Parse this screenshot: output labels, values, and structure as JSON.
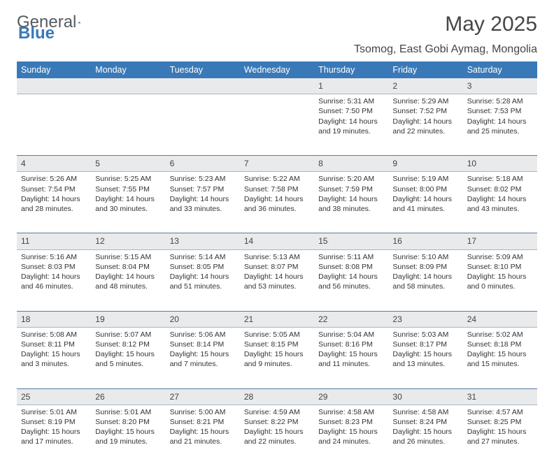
{
  "brand": {
    "first": "General",
    "second": "Blue"
  },
  "title": "May 2025",
  "location": "Tsomog, East Gobi Aymag, Mongolia",
  "colors": {
    "header_bg": "#3a79b7",
    "header_text": "#ffffff",
    "daynum_bg": "#e9eaeb",
    "row_divider": "#5a7aa3",
    "brand_accent": "#3a79b7"
  },
  "day_headers": [
    "Sunday",
    "Monday",
    "Tuesday",
    "Wednesday",
    "Thursday",
    "Friday",
    "Saturday"
  ],
  "weeks": [
    {
      "nums": [
        "",
        "",
        "",
        "",
        "1",
        "2",
        "3"
      ],
      "cells": [
        null,
        null,
        null,
        null,
        {
          "sunrise": "5:31 AM",
          "sunset": "7:50 PM",
          "daylight": "14 hours and 19 minutes."
        },
        {
          "sunrise": "5:29 AM",
          "sunset": "7:52 PM",
          "daylight": "14 hours and 22 minutes."
        },
        {
          "sunrise": "5:28 AM",
          "sunset": "7:53 PM",
          "daylight": "14 hours and 25 minutes."
        }
      ]
    },
    {
      "nums": [
        "4",
        "5",
        "6",
        "7",
        "8",
        "9",
        "10"
      ],
      "cells": [
        {
          "sunrise": "5:26 AM",
          "sunset": "7:54 PM",
          "daylight": "14 hours and 28 minutes."
        },
        {
          "sunrise": "5:25 AM",
          "sunset": "7:55 PM",
          "daylight": "14 hours and 30 minutes."
        },
        {
          "sunrise": "5:23 AM",
          "sunset": "7:57 PM",
          "daylight": "14 hours and 33 minutes."
        },
        {
          "sunrise": "5:22 AM",
          "sunset": "7:58 PM",
          "daylight": "14 hours and 36 minutes."
        },
        {
          "sunrise": "5:20 AM",
          "sunset": "7:59 PM",
          "daylight": "14 hours and 38 minutes."
        },
        {
          "sunrise": "5:19 AM",
          "sunset": "8:00 PM",
          "daylight": "14 hours and 41 minutes."
        },
        {
          "sunrise": "5:18 AM",
          "sunset": "8:02 PM",
          "daylight": "14 hours and 43 minutes."
        }
      ]
    },
    {
      "nums": [
        "11",
        "12",
        "13",
        "14",
        "15",
        "16",
        "17"
      ],
      "cells": [
        {
          "sunrise": "5:16 AM",
          "sunset": "8:03 PM",
          "daylight": "14 hours and 46 minutes."
        },
        {
          "sunrise": "5:15 AM",
          "sunset": "8:04 PM",
          "daylight": "14 hours and 48 minutes."
        },
        {
          "sunrise": "5:14 AM",
          "sunset": "8:05 PM",
          "daylight": "14 hours and 51 minutes."
        },
        {
          "sunrise": "5:13 AM",
          "sunset": "8:07 PM",
          "daylight": "14 hours and 53 minutes."
        },
        {
          "sunrise": "5:11 AM",
          "sunset": "8:08 PM",
          "daylight": "14 hours and 56 minutes."
        },
        {
          "sunrise": "5:10 AM",
          "sunset": "8:09 PM",
          "daylight": "14 hours and 58 minutes."
        },
        {
          "sunrise": "5:09 AM",
          "sunset": "8:10 PM",
          "daylight": "15 hours and 0 minutes."
        }
      ]
    },
    {
      "nums": [
        "18",
        "19",
        "20",
        "21",
        "22",
        "23",
        "24"
      ],
      "cells": [
        {
          "sunrise": "5:08 AM",
          "sunset": "8:11 PM",
          "daylight": "15 hours and 3 minutes."
        },
        {
          "sunrise": "5:07 AM",
          "sunset": "8:12 PM",
          "daylight": "15 hours and 5 minutes."
        },
        {
          "sunrise": "5:06 AM",
          "sunset": "8:14 PM",
          "daylight": "15 hours and 7 minutes."
        },
        {
          "sunrise": "5:05 AM",
          "sunset": "8:15 PM",
          "daylight": "15 hours and 9 minutes."
        },
        {
          "sunrise": "5:04 AM",
          "sunset": "8:16 PM",
          "daylight": "15 hours and 11 minutes."
        },
        {
          "sunrise": "5:03 AM",
          "sunset": "8:17 PM",
          "daylight": "15 hours and 13 minutes."
        },
        {
          "sunrise": "5:02 AM",
          "sunset": "8:18 PM",
          "daylight": "15 hours and 15 minutes."
        }
      ]
    },
    {
      "nums": [
        "25",
        "26",
        "27",
        "28",
        "29",
        "30",
        "31"
      ],
      "cells": [
        {
          "sunrise": "5:01 AM",
          "sunset": "8:19 PM",
          "daylight": "15 hours and 17 minutes."
        },
        {
          "sunrise": "5:01 AM",
          "sunset": "8:20 PM",
          "daylight": "15 hours and 19 minutes."
        },
        {
          "sunrise": "5:00 AM",
          "sunset": "8:21 PM",
          "daylight": "15 hours and 21 minutes."
        },
        {
          "sunrise": "4:59 AM",
          "sunset": "8:22 PM",
          "daylight": "15 hours and 22 minutes."
        },
        {
          "sunrise": "4:58 AM",
          "sunset": "8:23 PM",
          "daylight": "15 hours and 24 minutes."
        },
        {
          "sunrise": "4:58 AM",
          "sunset": "8:24 PM",
          "daylight": "15 hours and 26 minutes."
        },
        {
          "sunrise": "4:57 AM",
          "sunset": "8:25 PM",
          "daylight": "15 hours and 27 minutes."
        }
      ]
    }
  ],
  "labels": {
    "sunrise": "Sunrise:",
    "sunset": "Sunset:",
    "daylight": "Daylight:"
  }
}
